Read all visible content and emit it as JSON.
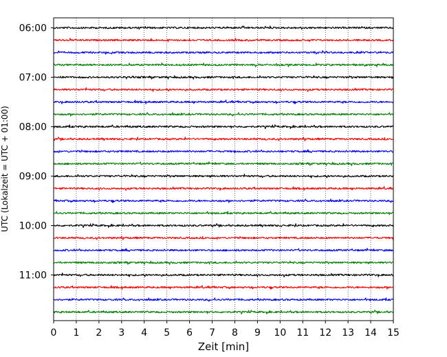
{
  "chart_data": {
    "type": "line",
    "title": "",
    "xlabel": "Zeit  [min]",
    "ylabel": "UTC (Lokalzeit = UTC + 01:00)",
    "xlim": [
      0,
      15
    ],
    "x_ticks": [
      0,
      1,
      2,
      3,
      4,
      5,
      6,
      7,
      8,
      9,
      10,
      11,
      12,
      13,
      14,
      15
    ],
    "y_tick_labels": [
      "06:00",
      "07:00",
      "08:00",
      "09:00",
      "10:00",
      "11:00"
    ],
    "traces_per_hour": 4,
    "trace_minutes": 15,
    "start_time": "06:00",
    "end_time": "11:45",
    "trace_colors": [
      "#000000",
      "#ff0000",
      "#0000ff",
      "#008000"
    ],
    "vertical_grid": true,
    "grid_style": "dotted",
    "legend": "none"
  }
}
